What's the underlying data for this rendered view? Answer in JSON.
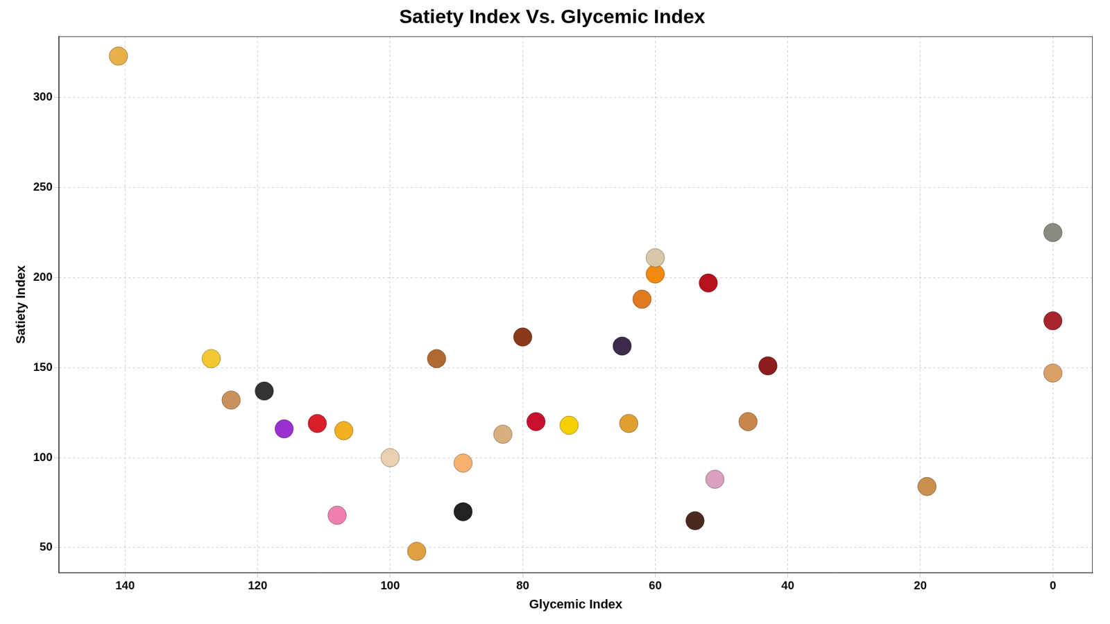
{
  "chart_data": {
    "type": "scatter",
    "title": "Satiety Index Vs. Glycemic Index",
    "x_label": "Glycemic Index",
    "y_label": "Satiety Index",
    "x": [
      141,
      0,
      0,
      0,
      19,
      43,
      46,
      51,
      54,
      52,
      60,
      60,
      62,
      65,
      64,
      73,
      78,
      83,
      89,
      89,
      96,
      100,
      93,
      80,
      127,
      124,
      119,
      111,
      116,
      107,
      108
    ],
    "values": [
      323,
      225,
      176,
      147,
      84,
      151,
      120,
      88,
      65,
      197,
      202,
      211,
      188,
      162,
      119,
      118,
      120,
      113,
      97,
      70,
      48,
      100,
      155,
      167,
      155,
      132,
      137,
      119,
      116,
      115,
      68
    ],
    "colors": [
      "#e8b04a",
      "#8a8a80",
      "#a8242e",
      "#d9a066",
      "#c98f4d",
      "#8e1e1e",
      "#c9864a",
      "#d9a0c0",
      "#4a2a1e",
      "#b5121b",
      "#f28a10",
      "#d8c8a8",
      "#e07a20",
      "#3c2a4a",
      "#e0a030",
      "#f5d000",
      "#c8102e",
      "#d8b080",
      "#f7b070",
      "#222222",
      "#e0a040",
      "#e8d0b0",
      "#b06a30",
      "#8a3a18",
      "#f2c830",
      "#c8935a",
      "#333333",
      "#d8202a",
      "#9b30d0",
      "#f0b020",
      "#f080b0"
    ],
    "marker": "circle",
    "xlim": [
      150,
      -6
    ],
    "xticks": [
      140,
      120,
      100,
      80,
      60,
      40,
      20,
      0
    ],
    "ylim": [
      36,
      334
    ],
    "yticks": [
      50,
      100,
      150,
      200,
      250,
      300
    ],
    "grid": true
  }
}
